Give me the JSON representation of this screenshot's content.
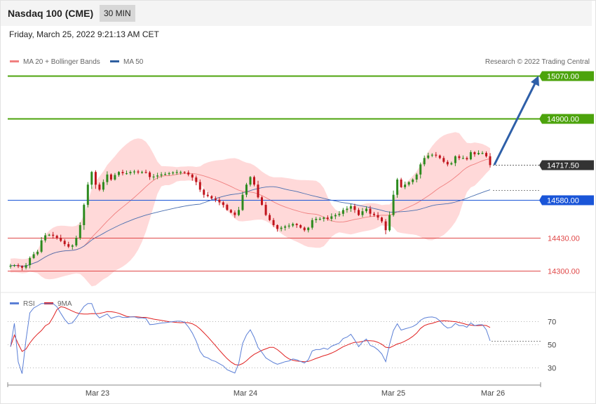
{
  "header": {
    "title": "Nasdaq 100 (CME)",
    "timeframe": "30 MIN",
    "datetime": "Friday, March 25, 2022 9:21:13 AM CET",
    "credit": "Research © 2022 Trading Central"
  },
  "legend": {
    "main": [
      {
        "label": "MA 20 + Bollinger Bands",
        "color": "#f08080"
      },
      {
        "label": "MA 50",
        "color": "#2f5fa0"
      }
    ],
    "rsi": [
      {
        "label": "RSI",
        "color": "#5b7fd6"
      },
      {
        "label": "9MA",
        "color": "#e02020"
      }
    ]
  },
  "colors": {
    "up": "#2d8a1e",
    "down": "#c0141c",
    "green_level": "#4ca30c",
    "blue_level": "#1a55d8",
    "red_level": "#e04848",
    "current": "#333333",
    "arrow": "#2e5fa8",
    "band": "#ffd2d2"
  },
  "chart_data": [
    {
      "type": "candlestick",
      "name": "price",
      "x_ticks": [
        "Mar 23",
        "Mar 24",
        "Mar 25",
        "Mar 26"
      ],
      "ylim": [
        14250,
        15120
      ],
      "levels": [
        {
          "label": "15070.00",
          "value": 15070,
          "kind": "resistance"
        },
        {
          "label": "14900.00",
          "value": 14900,
          "kind": "resistance"
        },
        {
          "label": "14717.50",
          "value": 14717.5,
          "kind": "current"
        },
        {
          "label": "14580.00",
          "value": 14580,
          "kind": "pivot"
        },
        {
          "label": "14430.00",
          "value": 14430,
          "kind": "support"
        },
        {
          "label": "14300.00",
          "value": 14300,
          "kind": "support"
        }
      ],
      "closes": [
        14320,
        14322,
        14318,
        14312,
        14322,
        14350,
        14365,
        14375,
        14420,
        14440,
        14442,
        14438,
        14430,
        14418,
        14405,
        14395,
        14400,
        14430,
        14480,
        14560,
        14640,
        14690,
        14640,
        14620,
        14650,
        14680,
        14660,
        14678,
        14690,
        14685,
        14685,
        14690,
        14692,
        14688,
        14690,
        14688,
        14670,
        14672,
        14676,
        14680,
        14682,
        14685,
        14688,
        14690,
        14690,
        14688,
        14680,
        14668,
        14650,
        14620,
        14600,
        14595,
        14585,
        14580,
        14570,
        14560,
        14540,
        14530,
        14520,
        14540,
        14600,
        14640,
        14670,
        14640,
        14590,
        14560,
        14520,
        14500,
        14480,
        14465,
        14470,
        14475,
        14478,
        14485,
        14480,
        14470,
        14460,
        14470,
        14500,
        14505,
        14505,
        14510,
        14505,
        14515,
        14520,
        14525,
        14540,
        14545,
        14555,
        14540,
        14520,
        14535,
        14545,
        14525,
        14520,
        14510,
        14495,
        14460,
        14520,
        14600,
        14660,
        14630,
        14640,
        14650,
        14660,
        14680,
        14720,
        14745,
        14755,
        14758,
        14755,
        14745,
        14730,
        14720,
        14725,
        14752,
        14745,
        14745,
        14740,
        14768,
        14760,
        14765,
        14765,
        14752,
        14717
      ],
      "rsi": {
        "ylim": [
          20,
          80
        ],
        "ticks": [
          70,
          50,
          30
        ]
      }
    }
  ]
}
